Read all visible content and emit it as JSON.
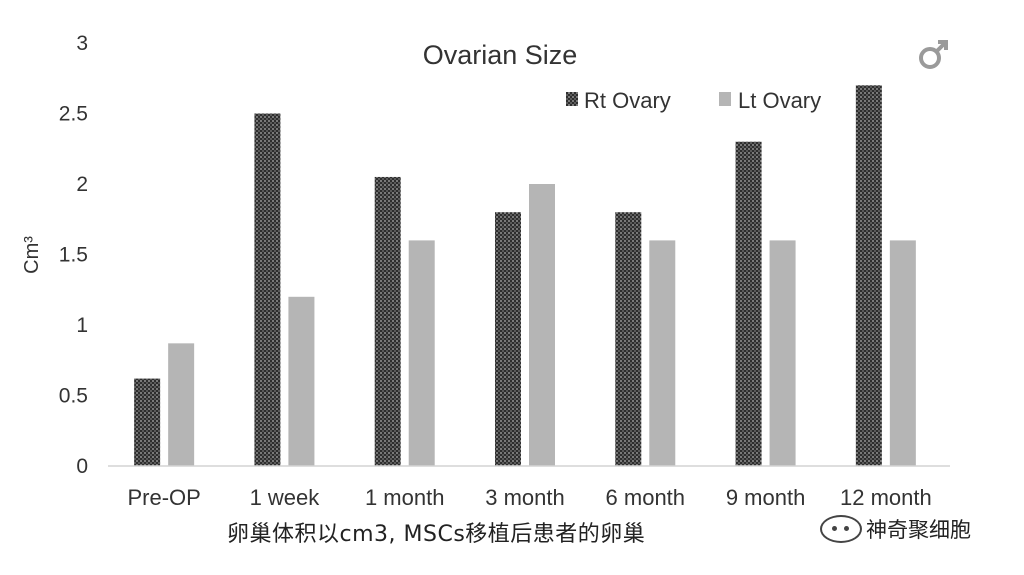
{
  "chart_data": {
    "type": "bar",
    "title": "Ovarian Size",
    "ylabel": "Cm³",
    "xlabel": "",
    "ylim": [
      0,
      3
    ],
    "yticks": [
      "0",
      "0.5",
      "1",
      "1.5",
      "2",
      "2.5",
      "3"
    ],
    "categories": [
      "Pre-OP",
      "1 week",
      "1 month",
      "3 month",
      "6 month",
      "9 month",
      "12 month"
    ],
    "series": [
      {
        "name": "Rt Ovary",
        "values": [
          0.62,
          2.5,
          2.05,
          1.8,
          1.8,
          2.3,
          2.7
        ],
        "color": "#3d3d3d"
      },
      {
        "name": "Lt Ovary",
        "values": [
          0.87,
          1.2,
          1.6,
          2.0,
          1.6,
          1.6,
          1.6
        ],
        "color": "#b5b5b5"
      }
    ],
    "legend_position": "top-right",
    "grid": false
  },
  "caption": "卵巢体积以cm3, MSCs移植后患者的卵巢",
  "watermark": {
    "text": "神奇聚细胞",
    "icon": "wechat-icon"
  },
  "corner_icon": "male-symbol-icon",
  "colors": {
    "axis": "#d4d4d4",
    "text": "#333333"
  }
}
